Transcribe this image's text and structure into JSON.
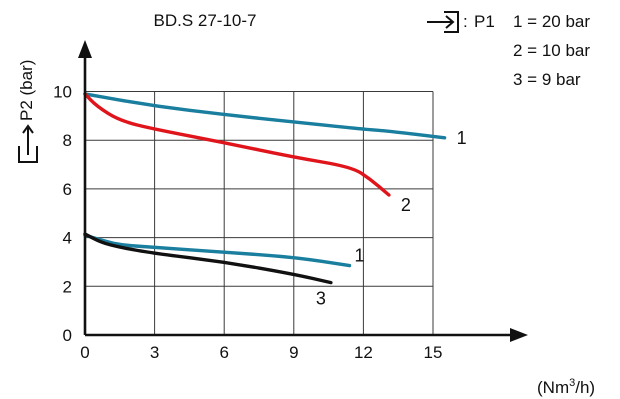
{
  "chart_data": {
    "type": "line",
    "title": "BD.S 27-10-7",
    "ylabel": "P2 (bar)",
    "xlabel_unit": "(Nm",
    "xlabel_sup": "3",
    "xlabel_unit_end": "/h)",
    "xlim": [
      0,
      15
    ],
    "ylim": [
      0,
      10
    ],
    "x_ticks": [
      "0",
      "3",
      "6",
      "9",
      "12",
      "15"
    ],
    "y_ticks": [
      "0",
      "2",
      "4",
      "6",
      "8",
      "10"
    ],
    "grid": true,
    "legend": {
      "symbol_text": ":",
      "label": "P1",
      "entries": [
        "1 = 20 bar",
        "2 = 10 bar",
        "3 = 9 bar"
      ]
    },
    "colors": {
      "teal": "#1a7e9e",
      "red": "#e0141b",
      "black": "#111111"
    },
    "series": [
      {
        "curve_label": "1",
        "color": "teal",
        "x": [
          0,
          3,
          6,
          9,
          12,
          13,
          15.5
        ],
        "y": [
          9.9,
          9.4,
          9.05,
          8.75,
          8.45,
          8.38,
          8.1
        ]
      },
      {
        "curve_label": "2",
        "color": "red",
        "x": [
          0,
          0.5,
          1.5,
          3,
          6,
          9,
          11.5,
          12.3,
          13.1
        ],
        "y": [
          9.9,
          9.4,
          8.8,
          8.45,
          7.9,
          7.3,
          6.9,
          6.4,
          5.75
        ]
      },
      {
        "curve_label": "1",
        "color": "teal",
        "x": [
          0,
          0.7,
          1.5,
          3,
          6,
          9,
          11.4
        ],
        "y": [
          4.1,
          3.9,
          3.7,
          3.6,
          3.4,
          3.2,
          2.85
        ]
      },
      {
        "curve_label": "3",
        "color": "black",
        "x": [
          0,
          0.7,
          1.5,
          3,
          6,
          9,
          10.6
        ],
        "y": [
          4.15,
          3.8,
          3.6,
          3.35,
          3.0,
          2.5,
          2.15
        ]
      }
    ]
  }
}
